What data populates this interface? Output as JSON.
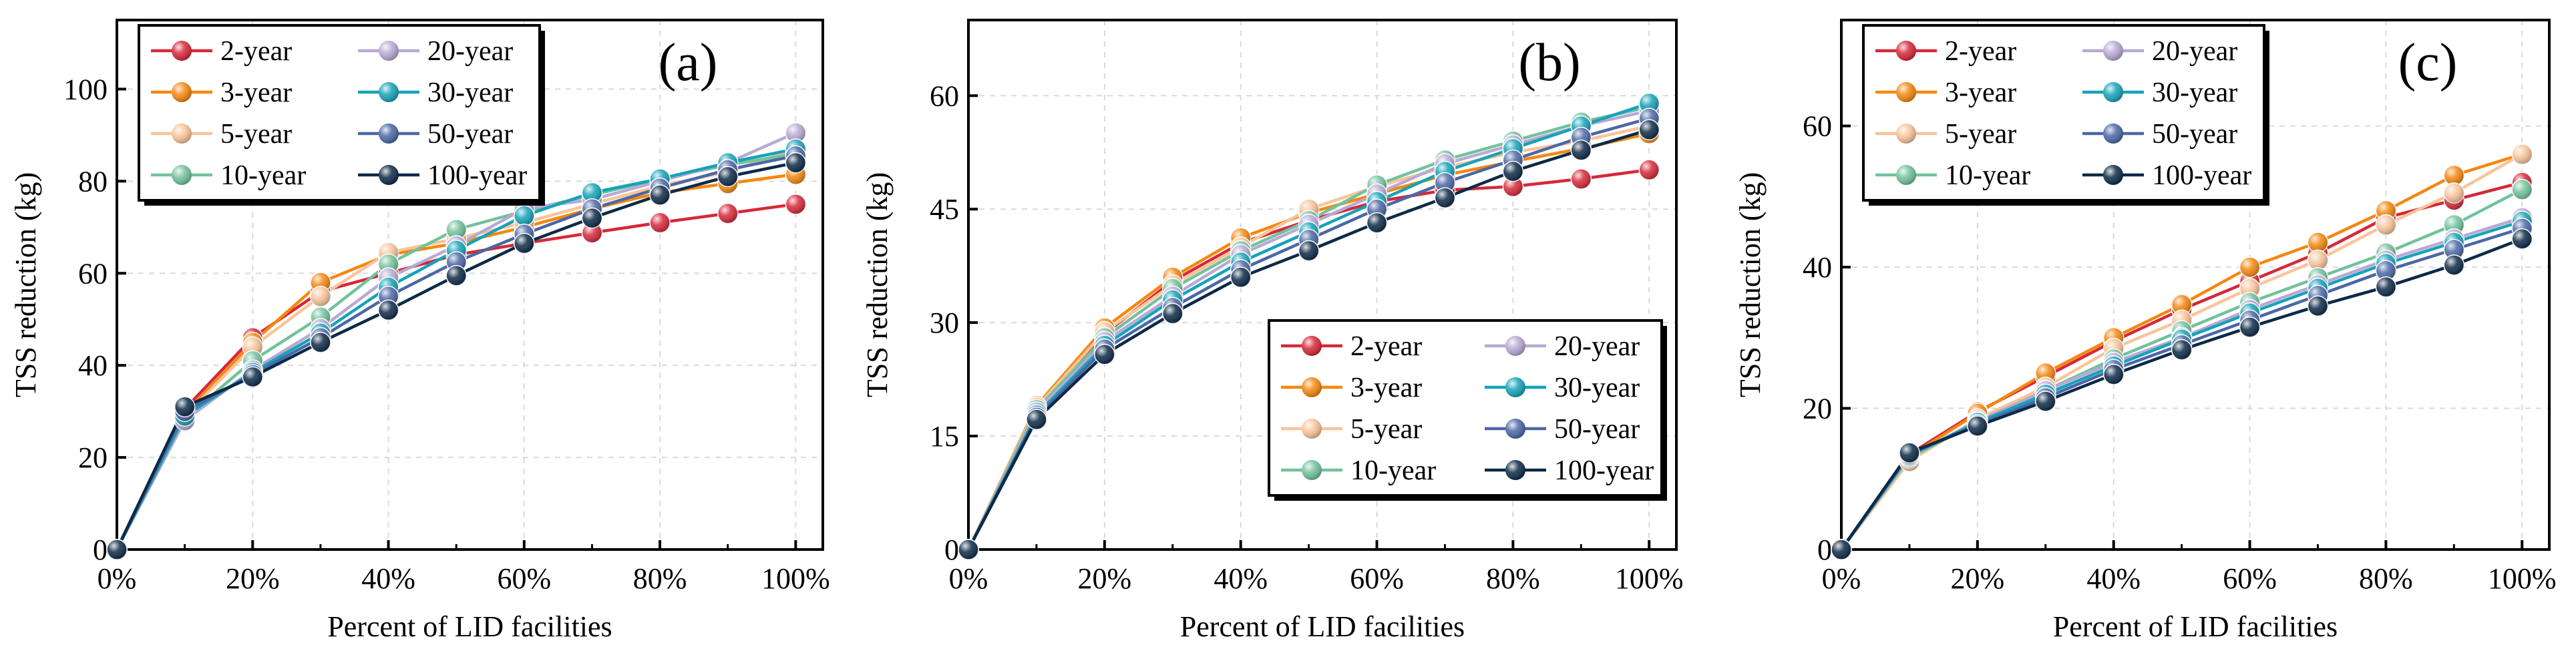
{
  "figure": {
    "xlabel": "Percent of LID facilities",
    "ylabel": "TSS reduction (kg)"
  },
  "series_styles": [
    {
      "name": "2-year",
      "color": "#d62839"
    },
    {
      "name": "3-year",
      "color": "#f5870f"
    },
    {
      "name": "5-year",
      "color": "#f9c49a"
    },
    {
      "name": "10-year",
      "color": "#72c29c"
    },
    {
      "name": "20-year",
      "color": "#b8a9d4"
    },
    {
      "name": "30-year",
      "color": "#15a3b8"
    },
    {
      "name": "50-year",
      "color": "#4b67a6"
    },
    {
      "name": "100-year",
      "color": "#0c2a47"
    }
  ],
  "chart_data": [
    {
      "type": "line",
      "panel": "(a)",
      "xlabel": "Percent of LID facilities",
      "ylabel": "TSS reduction (kg)",
      "x": [
        0,
        10,
        20,
        30,
        40,
        50,
        60,
        70,
        80,
        90,
        100
      ],
      "x_tick_labels": [
        "0%",
        "20%",
        "40%",
        "60%",
        "80%",
        "100%"
      ],
      "x_ticks": [
        0,
        20,
        40,
        60,
        80,
        100
      ],
      "xlim": [
        0,
        104
      ],
      "ylim": [
        0,
        115
      ],
      "y_ticks": [
        0,
        20,
        40,
        60,
        80,
        100
      ],
      "legend": [
        "2-year",
        "20-year",
        "3-year",
        "30-year",
        "5-year",
        "50-year",
        "10-year",
        "100-year"
      ],
      "legend_position": "top-left",
      "series": [
        {
          "name": "2-year",
          "values": [
            0,
            30.5,
            46,
            56,
            60,
            64,
            66.5,
            68.8,
            71,
            73,
            75
          ]
        },
        {
          "name": "3-year",
          "values": [
            0,
            29.5,
            45,
            58,
            64,
            66.5,
            70,
            74,
            77.5,
            79.5,
            81.5
          ]
        },
        {
          "name": "5-year",
          "values": [
            0,
            29,
            44,
            55,
            64.5,
            67.5,
            71,
            75,
            79,
            82,
            87
          ]
        },
        {
          "name": "10-year",
          "values": [
            0,
            28.5,
            41,
            50.5,
            62,
            69.5,
            73.5,
            77,
            80.5,
            83.5,
            86
          ]
        },
        {
          "name": "20-year",
          "values": [
            0,
            28,
            39,
            48,
            59,
            66,
            74,
            76,
            80,
            84,
            90.5
          ]
        },
        {
          "name": "30-year",
          "values": [
            0,
            29,
            38.5,
            47,
            57,
            65,
            72.5,
            77.5,
            80.5,
            84,
            87
          ]
        },
        {
          "name": "50-year",
          "values": [
            0,
            30,
            38,
            46,
            55,
            62.5,
            68.5,
            74,
            78.5,
            82.5,
            85.5
          ]
        },
        {
          "name": "100-year",
          "values": [
            0,
            31,
            37.5,
            45,
            52,
            59.5,
            66.5,
            72,
            77,
            81,
            84
          ]
        }
      ]
    },
    {
      "type": "line",
      "panel": "(b)",
      "xlabel": "Percent of LID facilities",
      "ylabel": "TSS reduction (kg)",
      "x": [
        0,
        10,
        20,
        30,
        40,
        50,
        60,
        70,
        80,
        90,
        100
      ],
      "x_tick_labels": [
        "0%",
        "20%",
        "40%",
        "60%",
        "80%",
        "100%"
      ],
      "x_ticks": [
        0,
        20,
        40,
        60,
        80,
        100
      ],
      "xlim": [
        0,
        104
      ],
      "ylim": [
        0,
        70
      ],
      "y_ticks": [
        0,
        15,
        30,
        45,
        60
      ],
      "legend": [
        "2-year",
        "20-year",
        "3-year",
        "30-year",
        "5-year",
        "50-year",
        "10-year",
        "100-year"
      ],
      "legend_position": "bottom-right",
      "series": [
        {
          "name": "2-year",
          "values": [
            0,
            18.5,
            28.5,
            35.5,
            40.5,
            43.5,
            46,
            47.5,
            48,
            49,
            50.2
          ]
        },
        {
          "name": "3-year",
          "values": [
            0,
            19,
            29.3,
            36,
            41.2,
            44.5,
            47,
            49.5,
            51.3,
            53,
            55
          ]
        },
        {
          "name": "5-year",
          "values": [
            0,
            18.8,
            28.8,
            35,
            40,
            45,
            48,
            50.5,
            52.5,
            54,
            56
          ]
        },
        {
          "name": "10-year",
          "values": [
            0,
            18.5,
            28,
            34.5,
            39.5,
            43.5,
            48.2,
            51.5,
            54,
            56.5,
            58.5
          ]
        },
        {
          "name": "20-year",
          "values": [
            0,
            18.2,
            27.5,
            33.5,
            39,
            43,
            47,
            51,
            53.5,
            56,
            58
          ]
        },
        {
          "name": "30-year",
          "values": [
            0,
            17.8,
            27,
            33,
            38,
            42,
            46,
            50,
            53,
            56,
            59
          ]
        },
        {
          "name": "50-year",
          "values": [
            0,
            17.5,
            26.5,
            32,
            37,
            41,
            45,
            48.5,
            51.5,
            54.5,
            57
          ]
        },
        {
          "name": "100-year",
          "values": [
            0,
            17.2,
            25.8,
            31.2,
            36,
            39.5,
            43.2,
            46.5,
            50,
            52.8,
            55.5
          ]
        }
      ]
    },
    {
      "type": "line",
      "panel": "(c)",
      "xlabel": "Percent of LID facilities",
      "ylabel": "TSS reduction (kg)",
      "x": [
        0,
        10,
        20,
        30,
        40,
        50,
        60,
        70,
        80,
        90,
        100
      ],
      "x_tick_labels": [
        "0%",
        "20%",
        "40%",
        "60%",
        "80%",
        "100%"
      ],
      "x_ticks": [
        0,
        20,
        40,
        60,
        80,
        100
      ],
      "xlim": [
        0,
        104
      ],
      "ylim": [
        0,
        75
      ],
      "y_ticks": [
        0,
        20,
        40,
        60
      ],
      "legend": [
        "2-year",
        "20-year",
        "3-year",
        "30-year",
        "5-year",
        "50-year",
        "10-year",
        "100-year"
      ],
      "legend_position": "top-left",
      "series": [
        {
          "name": "2-year",
          "values": [
            0,
            13.5,
            19.5,
            24.5,
            29.5,
            34,
            38,
            42,
            47,
            49.5,
            52
          ]
        },
        {
          "name": "3-year",
          "values": [
            0,
            13.2,
            19.3,
            25,
            30,
            34.7,
            40,
            43.5,
            48,
            53,
            56
          ]
        },
        {
          "name": "5-year",
          "values": [
            0,
            12.5,
            18.5,
            23,
            28.5,
            32.5,
            37,
            41,
            46,
            50.5,
            56
          ]
        },
        {
          "name": "10-year",
          "values": [
            0,
            13,
            18,
            22.5,
            27,
            31,
            35,
            38.5,
            42,
            46,
            51
          ]
        },
        {
          "name": "20-year",
          "values": [
            0,
            13.2,
            18.2,
            22.5,
            26.5,
            30,
            34,
            37.5,
            41,
            44,
            47
          ]
        },
        {
          "name": "30-year",
          "values": [
            0,
            13.3,
            18,
            22,
            26,
            29.8,
            33.5,
            37,
            40.5,
            43.5,
            46.5
          ]
        },
        {
          "name": "50-year",
          "values": [
            0,
            13.5,
            17.7,
            21.5,
            25.5,
            29,
            32.5,
            36,
            39.5,
            42.5,
            45.5
          ]
        },
        {
          "name": "100-year",
          "values": [
            0,
            13.7,
            17.5,
            21,
            24.8,
            28.3,
            31.5,
            34.5,
            37.2,
            40.3,
            44
          ]
        }
      ]
    }
  ]
}
